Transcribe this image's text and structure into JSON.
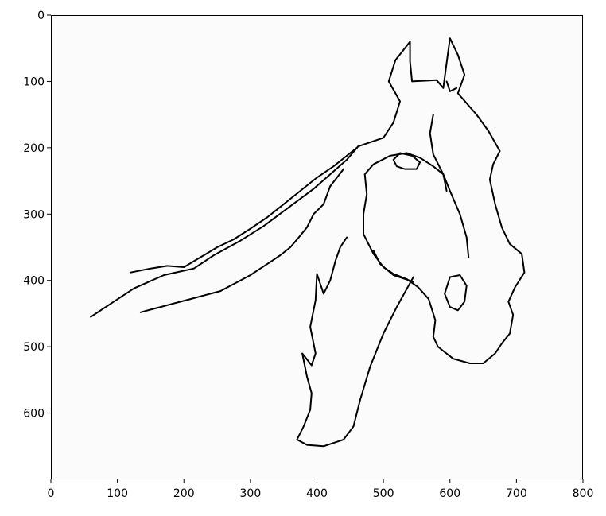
{
  "chart_data": {
    "type": "image",
    "title": "",
    "xlabel": "",
    "ylabel": "",
    "xlim": [
      0,
      800
    ],
    "ylim": [
      700,
      0
    ],
    "y_inverted": true,
    "grid": false,
    "x_ticks": [
      0,
      100,
      200,
      300,
      400,
      500,
      600,
      700,
      800
    ],
    "y_ticks": [
      0,
      100,
      200,
      300,
      400,
      500,
      600
    ],
    "x_tick_labels": [
      "0",
      "100",
      "200",
      "300",
      "400",
      "500",
      "600",
      "700",
      "800"
    ],
    "y_tick_labels": [
      "0",
      "100",
      "200",
      "300",
      "400",
      "500",
      "600"
    ],
    "image_content": "line drawing of a horse head",
    "background_color": "#fbfbfb",
    "line_color": "#000000",
    "sketch_paths": [
      [
        [
          60,
          455
        ],
        [
          90,
          435
        ],
        [
          125,
          412
        ],
        [
          170,
          392
        ],
        [
          215,
          382
        ],
        [
          245,
          362
        ],
        [
          285,
          340
        ],
        [
          320,
          318
        ],
        [
          360,
          288
        ],
        [
          395,
          262
        ],
        [
          420,
          240
        ],
        [
          445,
          218
        ],
        [
          462,
          198
        ],
        [
          500,
          185
        ],
        [
          515,
          162
        ],
        [
          525,
          130
        ],
        [
          508,
          100
        ],
        [
          518,
          68
        ],
        [
          540,
          40
        ],
        [
          540,
          70
        ],
        [
          543,
          100
        ],
        [
          580,
          98
        ],
        [
          590,
          110
        ],
        [
          595,
          72
        ],
        [
          600,
          35
        ],
        [
          612,
          60
        ],
        [
          622,
          90
        ],
        [
          612,
          118
        ],
        [
          640,
          150
        ],
        [
          658,
          175
        ],
        [
          675,
          205
        ],
        [
          665,
          225
        ],
        [
          660,
          248
        ],
        [
          668,
          285
        ],
        [
          678,
          320
        ],
        [
          690,
          345
        ],
        [
          708,
          360
        ],
        [
          712,
          388
        ],
        [
          698,
          410
        ],
        [
          688,
          432
        ],
        [
          695,
          452
        ],
        [
          690,
          480
        ],
        [
          678,
          495
        ],
        [
          668,
          510
        ],
        [
          650,
          525
        ],
        [
          630,
          525
        ],
        [
          605,
          518
        ],
        [
          582,
          500
        ],
        [
          575,
          485
        ],
        [
          578,
          460
        ],
        [
          568,
          428
        ],
        [
          552,
          410
        ],
        [
          535,
          398
        ],
        [
          515,
          390
        ],
        [
          500,
          380
        ],
        [
          485,
          360
        ],
        [
          470,
          330
        ],
        [
          470,
          300
        ],
        [
          475,
          270
        ],
        [
          472,
          240
        ],
        [
          485,
          225
        ],
        [
          510,
          212
        ],
        [
          535,
          208
        ],
        [
          555,
          215
        ],
        [
          575,
          228
        ],
        [
          590,
          240
        ],
        [
          600,
          265
        ],
        [
          615,
          300
        ],
        [
          625,
          335
        ],
        [
          628,
          365
        ]
      ],
      [
        [
          600,
          395
        ],
        [
          592,
          420
        ],
        [
          600,
          440
        ],
        [
          612,
          445
        ],
        [
          622,
          432
        ],
        [
          625,
          408
        ],
        [
          615,
          392
        ],
        [
          600,
          395
        ]
      ],
      [
        [
          515,
          218
        ],
        [
          525,
          208
        ],
        [
          543,
          212
        ],
        [
          555,
          222
        ],
        [
          550,
          232
        ],
        [
          532,
          232
        ],
        [
          520,
          228
        ],
        [
          515,
          218
        ]
      ],
      [
        [
          545,
          395
        ],
        [
          520,
          440
        ],
        [
          500,
          480
        ],
        [
          480,
          530
        ],
        [
          465,
          580
        ],
        [
          455,
          620
        ],
        [
          440,
          640
        ],
        [
          410,
          650
        ],
        [
          385,
          648
        ],
        [
          370,
          640
        ],
        [
          380,
          620
        ],
        [
          390,
          595
        ],
        [
          392,
          570
        ],
        [
          385,
          545
        ],
        [
          378,
          510
        ],
        [
          392,
          528
        ],
        [
          398,
          510
        ],
        [
          390,
          470
        ],
        [
          398,
          430
        ],
        [
          400,
          390
        ],
        [
          410,
          420
        ],
        [
          420,
          400
        ],
        [
          428,
          370
        ],
        [
          435,
          350
        ],
        [
          445,
          335
        ]
      ],
      [
        [
          485,
          355
        ],
        [
          495,
          375
        ],
        [
          515,
          392
        ],
        [
          545,
          402
        ]
      ],
      [
        [
          120,
          388
        ],
        [
          150,
          382
        ],
        [
          175,
          378
        ],
        [
          200,
          380
        ],
        [
          225,
          365
        ],
        [
          250,
          350
        ],
        [
          275,
          338
        ],
        [
          300,
          322
        ],
        [
          325,
          305
        ],
        [
          350,
          285
        ],
        [
          375,
          265
        ],
        [
          400,
          245
        ],
        [
          425,
          228
        ],
        [
          445,
          212
        ],
        [
          460,
          200
        ]
      ],
      [
        [
          440,
          232
        ],
        [
          420,
          258
        ],
        [
          410,
          285
        ],
        [
          395,
          300
        ],
        [
          385,
          320
        ],
        [
          372,
          336
        ],
        [
          360,
          350
        ],
        [
          345,
          362
        ],
        [
          330,
          372
        ],
        [
          315,
          382
        ],
        [
          300,
          392
        ],
        [
          285,
          400
        ],
        [
          270,
          408
        ],
        [
          255,
          416
        ],
        [
          240,
          420
        ],
        [
          225,
          424
        ],
        [
          210,
          428
        ],
        [
          195,
          432
        ],
        [
          180,
          436
        ],
        [
          165,
          440
        ],
        [
          150,
          444
        ],
        [
          135,
          448
        ]
      ],
      [
        [
          575,
          150
        ],
        [
          570,
          178
        ],
        [
          575,
          210
        ],
        [
          590,
          240
        ],
        [
          595,
          265
        ]
      ],
      [
        [
          595,
          100
        ],
        [
          600,
          115
        ],
        [
          610,
          110
        ]
      ]
    ]
  }
}
